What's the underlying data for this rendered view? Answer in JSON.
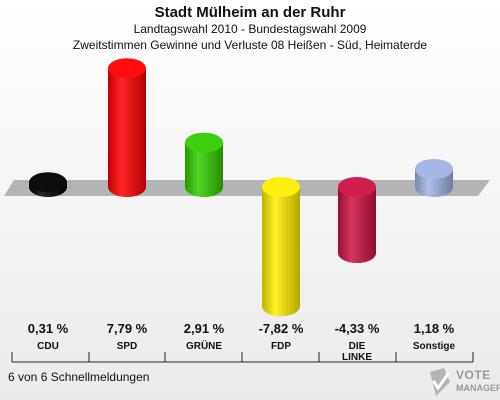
{
  "header": {
    "title": "Stadt Mülheim an der Ruhr",
    "subtitle1": "Landtagswahl 2010 - Bundestagswahl 2009",
    "subtitle2": "Zweitstimmen Gewinne und Verluste 08 Heißen - Süd, Heimaterde"
  },
  "chart_data": {
    "type": "bar",
    "categories": [
      "CDU",
      "SPD",
      "GRÜNE",
      "FDP",
      "DIE\nLINKE",
      "Sonstige"
    ],
    "values": [
      0.31,
      7.79,
      2.91,
      -7.82,
      -4.33,
      1.18
    ],
    "value_labels": [
      "0,31 %",
      "7,79 %",
      "2,91 %",
      "-7,82 %",
      "-4,33 %",
      "1,18 %"
    ],
    "colors": [
      "#000000",
      "#ff0000",
      "#33cc00",
      "#ffee00",
      "#cc1144",
      "#a0b4e6"
    ],
    "ylim": [
      -10,
      10
    ],
    "grid": false,
    "legend": "none"
  },
  "footnote": "6 von 6 Schnellmeldungen",
  "logo": {
    "line1": "VOTE",
    "line2": "MANAGER",
    "icon": "checkmark-ballot-icon"
  }
}
